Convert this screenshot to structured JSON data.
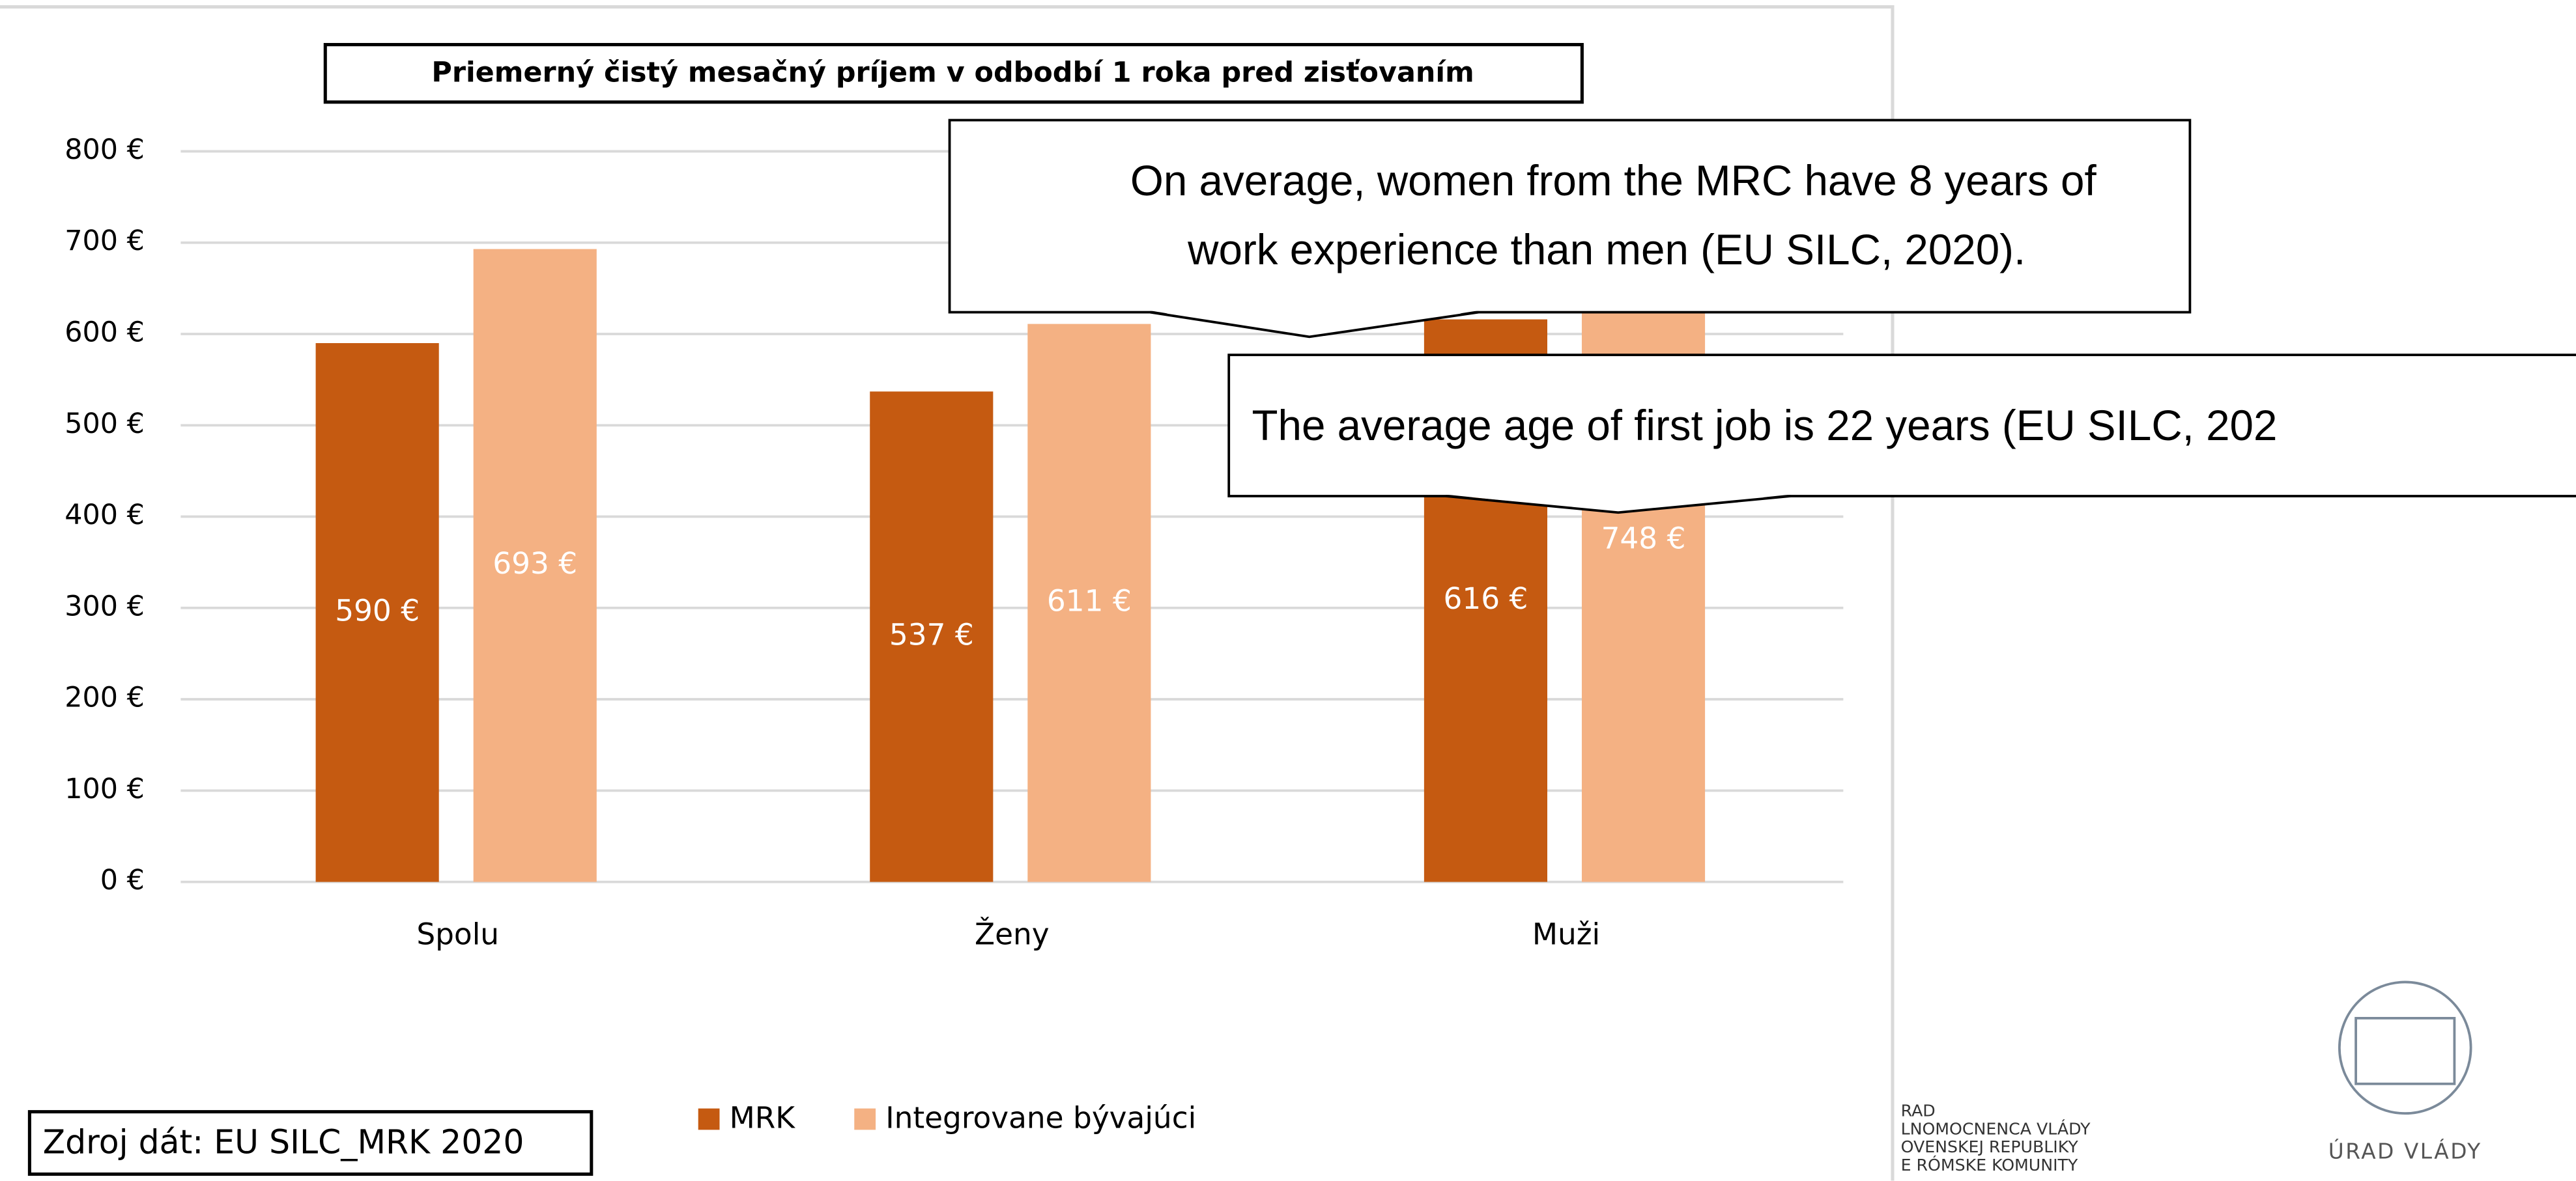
{
  "chart_data": {
    "type": "bar",
    "title": "Priemerný čistý mesačný príjem v odbodbí 1 roka pred zisťovaním",
    "categories": [
      "Spolu",
      "Ženy",
      "Muži"
    ],
    "series": [
      {
        "name": "MRK",
        "color": "#c55a11",
        "values": [
          590,
          537,
          616
        ],
        "value_labels": [
          "590 €",
          "537 €",
          "616 €"
        ]
      },
      {
        "name": "Integrovane bývajúci",
        "color": "#f4b183",
        "values": [
          693,
          611,
          748
        ],
        "value_labels": [
          "693 €",
          "611 €",
          "748 €"
        ]
      }
    ],
    "ylim": [
      0,
      800
    ],
    "yticks": [
      {
        "value": 0,
        "label": "0 €"
      },
      {
        "value": 100,
        "label": "100 €"
      },
      {
        "value": 200,
        "label": "200 €"
      },
      {
        "value": 300,
        "label": "300 €"
      },
      {
        "value": 400,
        "label": "400 €"
      },
      {
        "value": 500,
        "label": "500 €"
      },
      {
        "value": 600,
        "label": "600 €"
      },
      {
        "value": 700,
        "label": "700 €"
      },
      {
        "value": 800,
        "label": "800 €"
      }
    ],
    "grid": true,
    "legend": "bottom",
    "annotations": [
      {
        "lines": [
          "On average, women from the MRC have 8 years of",
          "work experience than men (EU SILC, 2020)."
        ]
      },
      {
        "lines": [
          "The average age of first job is 22 years (EU SILC, 202"
        ]
      }
    ],
    "source": "Zdroj dát: EU SILC_MRK 2020"
  },
  "logo": {
    "name": "ÚRAD VLÁDY",
    "partial_lines": [
      "RAD",
      "LNOMOCNENCA VLÁDY",
      "OVENSKEJ REPUBLIKY",
      "E RÓMSKE KOMUNITY"
    ]
  }
}
